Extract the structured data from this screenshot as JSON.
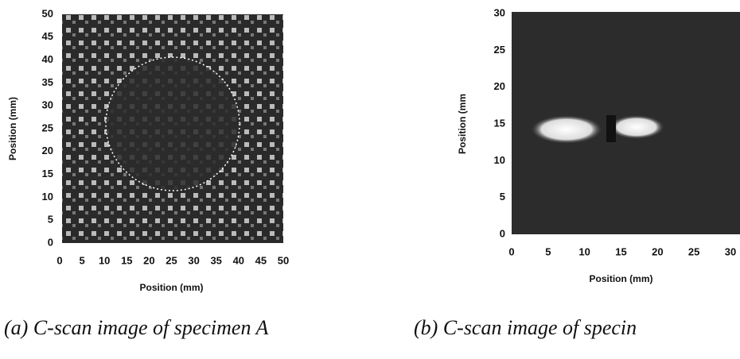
{
  "chart_data": [
    {
      "type": "image",
      "xlabel": "Position (mm)",
      "ylabel": "Position (mm)",
      "caption": "(a) C-scan image of specimen A",
      "xlim": [
        0,
        50
      ],
      "ylim": [
        0,
        50
      ],
      "xticks": [
        0,
        5,
        10,
        15,
        20,
        25,
        30,
        35,
        40,
        45,
        50
      ],
      "yticks": [
        0,
        5,
        10,
        15,
        20,
        25,
        30,
        35,
        40,
        45,
        50
      ]
    },
    {
      "type": "image",
      "xlabel": "Position (mm)",
      "ylabel": "Position (mm",
      "caption": "(b) C-scan image of specin",
      "xlim": [
        0,
        30
      ],
      "ylim": [
        0,
        30
      ],
      "xticks": [
        0,
        5,
        10,
        15,
        20,
        25,
        30
      ],
      "yticks": [
        0,
        5,
        10,
        15,
        20,
        25,
        30
      ]
    }
  ]
}
